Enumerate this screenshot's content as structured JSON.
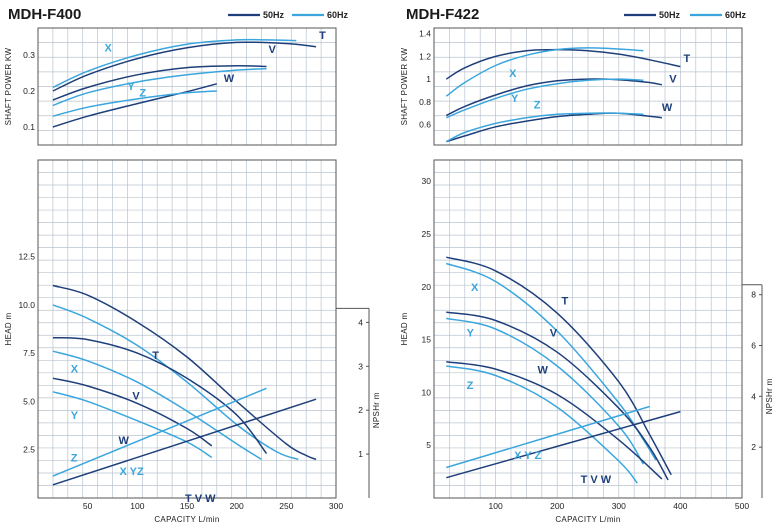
{
  "legend": {
    "hz50": "50Hz",
    "hz60": "60Hz"
  },
  "colors": {
    "hz50": "#1e3f7a",
    "hz60": "#3aa6dd",
    "grid": "#b9c4cf",
    "frame": "#555555"
  },
  "chart_data": [
    {
      "title": "MDH-F400",
      "type": "line",
      "panels": {
        "power": {
          "ylabel": "SHAFT POWER KW",
          "xlim": [
            0,
            300
          ],
          "ylim": [
            0.05,
            0.375
          ],
          "yticks": [
            0.1,
            0.2,
            0.3
          ],
          "series": [
            {
              "name": "T",
              "hz": "50Hz",
              "x": [
                15,
                50,
                100,
                150,
                200,
                250,
                280
              ],
              "y": [
                0.2,
                0.245,
                0.29,
                0.32,
                0.335,
                0.332,
                0.323
              ]
            },
            {
              "name": "X",
              "hz": "60Hz",
              "x": [
                15,
                50,
                100,
                150,
                200,
                230,
                260
              ],
              "y": [
                0.21,
                0.255,
                0.3,
                0.33,
                0.342,
                0.342,
                0.34
              ]
            },
            {
              "name": "V",
              "hz": "50Hz",
              "x": [
                15,
                50,
                100,
                150,
                200,
                230
              ],
              "y": [
                0.175,
                0.21,
                0.245,
                0.265,
                0.27,
                0.268
              ]
            },
            {
              "name": "Y",
              "hz": "60Hz",
              "x": [
                15,
                50,
                100,
                150,
                200,
                230
              ],
              "y": [
                0.16,
                0.195,
                0.225,
                0.245,
                0.258,
                0.262
              ]
            },
            {
              "name": "W",
              "hz": "50Hz",
              "x": [
                15,
                50,
                100,
                150,
                180
              ],
              "y": [
                0.1,
                0.13,
                0.165,
                0.198,
                0.22
              ]
            },
            {
              "name": "Z",
              "hz": "60Hz",
              "x": [
                15,
                50,
                100,
                150,
                180
              ],
              "y": [
                0.13,
                0.155,
                0.178,
                0.195,
                0.2
              ]
            }
          ],
          "labels": [
            {
              "text": "T",
              "x": 283,
              "y": 0.345,
              "hz": "50Hz"
            },
            {
              "text": "X",
              "x": 67,
              "y": 0.31,
              "hz": "60Hz"
            },
            {
              "text": "V",
              "x": 232,
              "y": 0.305,
              "hz": "50Hz"
            },
            {
              "text": "Y",
              "x": 90,
              "y": 0.203,
              "hz": "60Hz"
            },
            {
              "text": "Z",
              "x": 102,
              "y": 0.185,
              "hz": "60Hz"
            },
            {
              "text": "W",
              "x": 187,
              "y": 0.225,
              "hz": "50Hz"
            }
          ]
        },
        "head": {
          "ylabel": "HEAD m",
          "xlabel": "CAPACITY  L/min",
          "xlim": [
            0,
            300
          ],
          "ylim": [
            0,
            17.5
          ],
          "xticks": [
            50,
            100,
            150,
            200,
            250,
            300
          ],
          "yticks": [
            2.5,
            5.0,
            7.5,
            10.0,
            12.5
          ],
          "npsh_label": "NPSHr  m",
          "npsh_ticks": [
            1,
            2,
            3,
            4
          ],
          "npsh_ylim": [
            0,
            7.7
          ],
          "series": [
            {
              "name": "T",
              "hz": "50Hz",
              "x": [
                15,
                50,
                100,
                150,
                200,
                250,
                270,
                280
              ],
              "y": [
                11.0,
                10.5,
                9.1,
                7.3,
                5.0,
                2.8,
                2.2,
                2.0
              ]
            },
            {
              "name": "X",
              "hz": "60Hz",
              "x": [
                15,
                50,
                100,
                150,
                200,
                240,
                262
              ],
              "y": [
                10.0,
                9.3,
                7.9,
                6.0,
                3.8,
                2.4,
                2.0
              ]
            },
            {
              "name": "V",
              "hz": "50Hz",
              "x": [
                15,
                50,
                100,
                150,
                200,
                230
              ],
              "y": [
                8.3,
                8.2,
                7.5,
                6.2,
                4.3,
                2.3
              ]
            },
            {
              "name": "Y",
              "hz": "60Hz",
              "x": [
                15,
                50,
                100,
                150,
                200,
                225
              ],
              "y": [
                7.6,
                7.1,
                6.0,
                4.5,
                2.8,
                2.0
              ]
            },
            {
              "name": "W",
              "hz": "50Hz",
              "x": [
                15,
                50,
                100,
                150,
                175
              ],
              "y": [
                6.2,
                5.8,
                4.9,
                3.6,
                2.7
              ]
            },
            {
              "name": "Z",
              "hz": "60Hz",
              "x": [
                15,
                50,
                100,
                150,
                175
              ],
              "y": [
                5.5,
                5.0,
                4.0,
                2.9,
                2.1
              ]
            }
          ],
          "npshr": [
            {
              "name": "XYZ",
              "hz": "60Hz",
              "x": [
                15,
                230
              ],
              "y": [
                0.5,
                2.5
              ]
            },
            {
              "name": "TVW",
              "hz": "50Hz",
              "x": [
                15,
                280
              ],
              "y": [
                0.3,
                2.25
              ]
            }
          ],
          "labels": [
            {
              "text": "T",
              "x": 115,
              "y": 7.2,
              "hz": "50Hz"
            },
            {
              "text": "X",
              "x": 33,
              "y": 6.5,
              "hz": "60Hz"
            },
            {
              "text": "V",
              "x": 95,
              "y": 5.1,
              "hz": "50Hz"
            },
            {
              "text": "Y",
              "x": 33,
              "y": 4.1,
              "hz": "60Hz"
            },
            {
              "text": "W",
              "x": 81,
              "y": 2.8,
              "hz": "50Hz"
            },
            {
              "text": "Z",
              "x": 33,
              "y": 1.9,
              "hz": "60Hz"
            },
            {
              "text": "X YZ",
              "x": 82,
              "y": 1.2,
              "hz": "60Hz"
            },
            {
              "text": "T V W",
              "x": 148,
              "y": -0.2,
              "hz": "50Hz"
            }
          ]
        }
      }
    },
    {
      "title": "MDH-F422",
      "type": "line",
      "panels": {
        "power": {
          "ylabel": "SHAFT POWER KW",
          "xlim": [
            0,
            500
          ],
          "ylim": [
            0.42,
            1.45
          ],
          "yticks": [
            0.6,
            0.8,
            1.0,
            1.2,
            1.4
          ],
          "series": [
            {
              "name": "T",
              "hz": "50Hz",
              "x": [
                20,
                50,
                100,
                150,
                200,
                250,
                300,
                350,
                400
              ],
              "y": [
                1.0,
                1.1,
                1.2,
                1.25,
                1.26,
                1.25,
                1.22,
                1.17,
                1.11
              ]
            },
            {
              "name": "X",
              "hz": "60Hz",
              "x": [
                20,
                50,
                100,
                150,
                200,
                250,
                300,
                340
              ],
              "y": [
                0.85,
                0.97,
                1.12,
                1.21,
                1.26,
                1.275,
                1.265,
                1.25
              ]
            },
            {
              "name": "V",
              "hz": "50Hz",
              "x": [
                20,
                50,
                100,
                150,
                200,
                250,
                300,
                350,
                370
              ],
              "y": [
                0.68,
                0.76,
                0.86,
                0.94,
                0.985,
                1.0,
                0.995,
                0.97,
                0.95
              ]
            },
            {
              "name": "Y",
              "hz": "60Hz",
              "x": [
                20,
                50,
                100,
                150,
                200,
                250,
                300,
                340
              ],
              "y": [
                0.66,
                0.73,
                0.83,
                0.91,
                0.96,
                0.99,
                1.0,
                0.99
              ]
            },
            {
              "name": "W",
              "hz": "50Hz",
              "x": [
                20,
                50,
                100,
                150,
                200,
                250,
                300,
                370
              ],
              "y": [
                0.45,
                0.5,
                0.58,
                0.63,
                0.67,
                0.69,
                0.7,
                0.66
              ]
            },
            {
              "name": "Z",
              "hz": "60Hz",
              "x": [
                20,
                50,
                100,
                150,
                200,
                250,
                300,
                340
              ],
              "y": [
                0.45,
                0.53,
                0.61,
                0.66,
                0.69,
                0.7,
                0.7,
                0.69
              ]
            }
          ],
          "labels": [
            {
              "text": "T",
              "x": 405,
              "y": 1.15,
              "hz": "50Hz"
            },
            {
              "text": "X",
              "x": 122,
              "y": 1.02,
              "hz": "60Hz"
            },
            {
              "text": "V",
              "x": 382,
              "y": 0.97,
              "hz": "50Hz"
            },
            {
              "text": "Y",
              "x": 125,
              "y": 0.8,
              "hz": "60Hz"
            },
            {
              "text": "Z",
              "x": 162,
              "y": 0.74,
              "hz": "60Hz"
            },
            {
              "text": "W",
              "x": 370,
              "y": 0.72,
              "hz": "50Hz"
            }
          ]
        },
        "head": {
          "ylabel": "HEAD m",
          "xlabel": "CAPACITY  L/min",
          "xlim": [
            0,
            500
          ],
          "ylim": [
            0,
            32
          ],
          "xticks": [
            100,
            200,
            300,
            400,
            500
          ],
          "yticks": [
            5,
            10,
            15,
            20,
            25,
            30
          ],
          "npsh_label": "NPSHr  m",
          "npsh_ticks": [
            2,
            4,
            6,
            8
          ],
          "npsh_ylim": [
            0,
            13.3
          ],
          "series": [
            {
              "name": "T",
              "hz": "50Hz",
              "x": [
                20,
                100,
                200,
                300,
                350,
                385
              ],
              "y": [
                22.8,
                21.5,
                17.5,
                11.0,
                6.0,
                2.2
              ]
            },
            {
              "name": "X",
              "hz": "60Hz",
              "x": [
                20,
                100,
                200,
                300,
                340,
                360
              ],
              "y": [
                22.2,
                20.5,
                15.8,
                9.0,
                5.5,
                3.6
              ]
            },
            {
              "name": "V",
              "hz": "50Hz",
              "x": [
                20,
                100,
                200,
                300,
                350,
                380
              ],
              "y": [
                17.6,
                16.8,
                13.8,
                8.5,
                4.8,
                1.7
              ]
            },
            {
              "name": "Y",
              "hz": "60Hz",
              "x": [
                20,
                100,
                200,
                300,
                340
              ],
              "y": [
                17.0,
                16.0,
                12.5,
                6.8,
                3.2
              ]
            },
            {
              "name": "W",
              "hz": "50Hz",
              "x": [
                20,
                100,
                200,
                300,
                370
              ],
              "y": [
                12.9,
                12.2,
                9.8,
                5.5,
                1.8
              ]
            },
            {
              "name": "Z",
              "hz": "60Hz",
              "x": [
                20,
                100,
                200,
                300,
                330
              ],
              "y": [
                12.5,
                11.6,
                8.6,
                3.5,
                1.4
              ]
            }
          ],
          "npshr": [
            {
              "name": "XYZ",
              "hz": "60Hz",
              "x": [
                20,
                350
              ],
              "y": [
                1.2,
                3.6
              ]
            },
            {
              "name": "TVW",
              "hz": "50Hz",
              "x": [
                20,
                400
              ],
              "y": [
                0.8,
                3.4
              ]
            }
          ],
          "labels": [
            {
              "text": "T",
              "x": 207,
              "y": 18.3,
              "hz": "50Hz"
            },
            {
              "text": "X",
              "x": 60,
              "y": 19.6,
              "hz": "60Hz"
            },
            {
              "text": "V",
              "x": 188,
              "y": 15.3,
              "hz": "50Hz"
            },
            {
              "text": "Y",
              "x": 53,
              "y": 15.3,
              "hz": "60Hz"
            },
            {
              "text": "W",
              "x": 168,
              "y": 11.8,
              "hz": "50Hz"
            },
            {
              "text": "Z",
              "x": 53,
              "y": 10.3,
              "hz": "60Hz"
            },
            {
              "text": "X Y Z",
              "x": 130,
              "y": 3.7,
              "hz": "60Hz"
            },
            {
              "text": "T V W",
              "x": 238,
              "y": 1.4,
              "hz": "50Hz"
            }
          ]
        }
      }
    }
  ]
}
